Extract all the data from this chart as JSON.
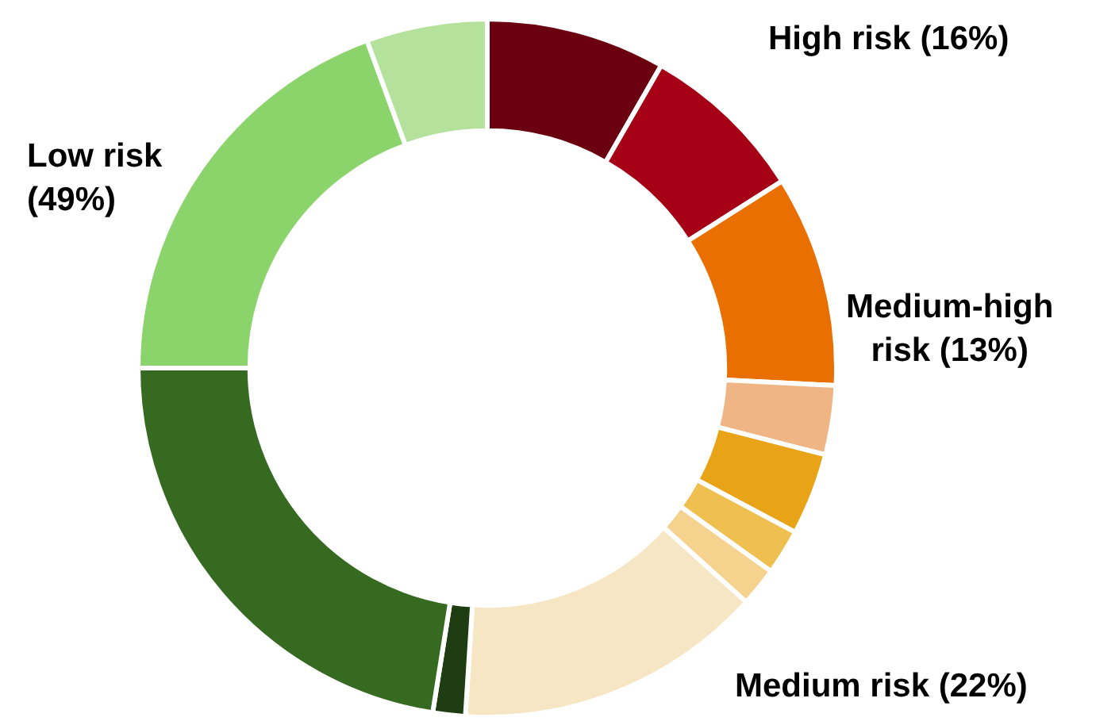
{
  "chart_data": {
    "type": "donut",
    "categories": [
      null,
      null,
      null,
      null,
      null,
      null,
      null,
      null,
      null,
      null,
      null,
      null
    ],
    "values": [
      8.3,
      7.7,
      9.8,
      3.2,
      3.8,
      2.1,
      1.8,
      14.3,
      1.5,
      22.5,
      19.4,
      5.6
    ],
    "colors": [
      "#6b0010",
      "#a50015",
      "#e86f00",
      "#f0b584",
      "#e8a317",
      "#efc050",
      "#f5d38e",
      "#f7e6c4",
      "#1f3d12",
      "#366a21",
      "#8bd46c",
      "#b4e29c"
    ],
    "annotations": [
      "High risk (16%)",
      "Medium-high\nrisk (13%)",
      "Medium risk (22%)",
      "Low risk\n(49%)"
    ],
    "legend": false
  }
}
